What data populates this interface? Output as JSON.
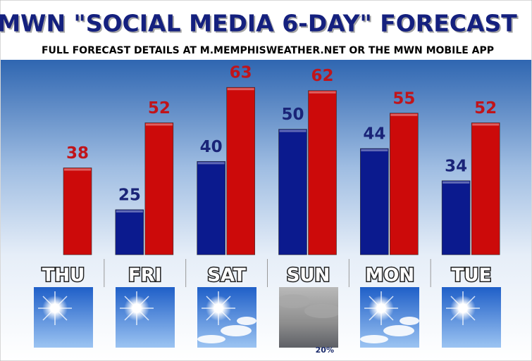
{
  "chart_data": {
    "type": "bar",
    "title": "MWN \"SOCIAL MEDIA 6-DAY\" FORECAST",
    "subtitle": "FULL FORECAST DETAILS AT M.MEMPHISWEATHER.NET OR THE MWN MOBILE APP",
    "categories": [
      "THU",
      "FRI",
      "SAT",
      "SUN",
      "MON",
      "TUE"
    ],
    "series": [
      {
        "color": "#0b1a8e",
        "label_color": "#1a2478",
        "values": [
          null,
          25,
          40,
          50,
          44,
          34
        ]
      },
      {
        "color": "#cc0a0a",
        "label_color": "#c0141a",
        "values": [
          38,
          52,
          63,
          62,
          55,
          52
        ]
      }
    ],
    "ylim": [
      11,
      72
    ],
    "annotation": "20%"
  }
}
